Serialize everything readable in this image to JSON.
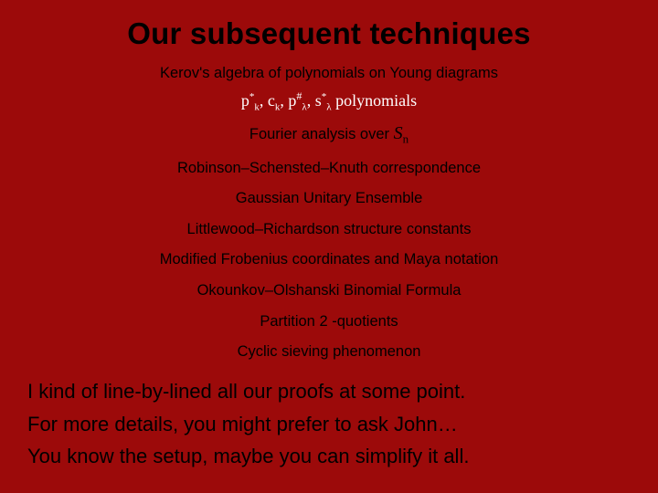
{
  "background_color": "#9c0a0a",
  "text_color": "#000000",
  "formula_color": "#ffffff",
  "title": "Our subsequent techniques",
  "title_fontsize": 33,
  "tech_item_fontsize": 16.5,
  "closing_fontsize": 22,
  "techniques": {
    "item0": "Kerov's algebra of polynomials on Young diagrams",
    "item2": "Fourier analysis over ",
    "item3": "Robinson–Schensted–Knuth correspondence",
    "item4": "Gaussian Unitary Ensemble",
    "item5": "Littlewood–Richardson structure constants",
    "item6": "Modified Frobenius coordinates and Maya notation",
    "item7": "Okounkov–Olshanski Binomial Formula",
    "item8": "Partition 2 -quotients",
    "item9": "Cyclic sieving phenomenon"
  },
  "formula_terms": {
    "p": "p",
    "p_sup": "*",
    "p_sub": "k",
    "c": "c",
    "c_sub": "k",
    "pp": "p",
    "pp_sup": "#",
    "pp_sub": "λ",
    "s": "s",
    "s_sup": "*",
    "s_sub": "λ",
    "tail": " polynomials",
    "sep1": ", ",
    "sep2": ", ",
    "sep3": ", "
  },
  "sn": {
    "s": "S",
    "n": "n"
  },
  "closing": {
    "line0": "I kind of line-by-lined all our proofs at some point.",
    "line1": "For more details, you might prefer to ask John…",
    "line2": "You know the setup, maybe you can simplify it all."
  }
}
